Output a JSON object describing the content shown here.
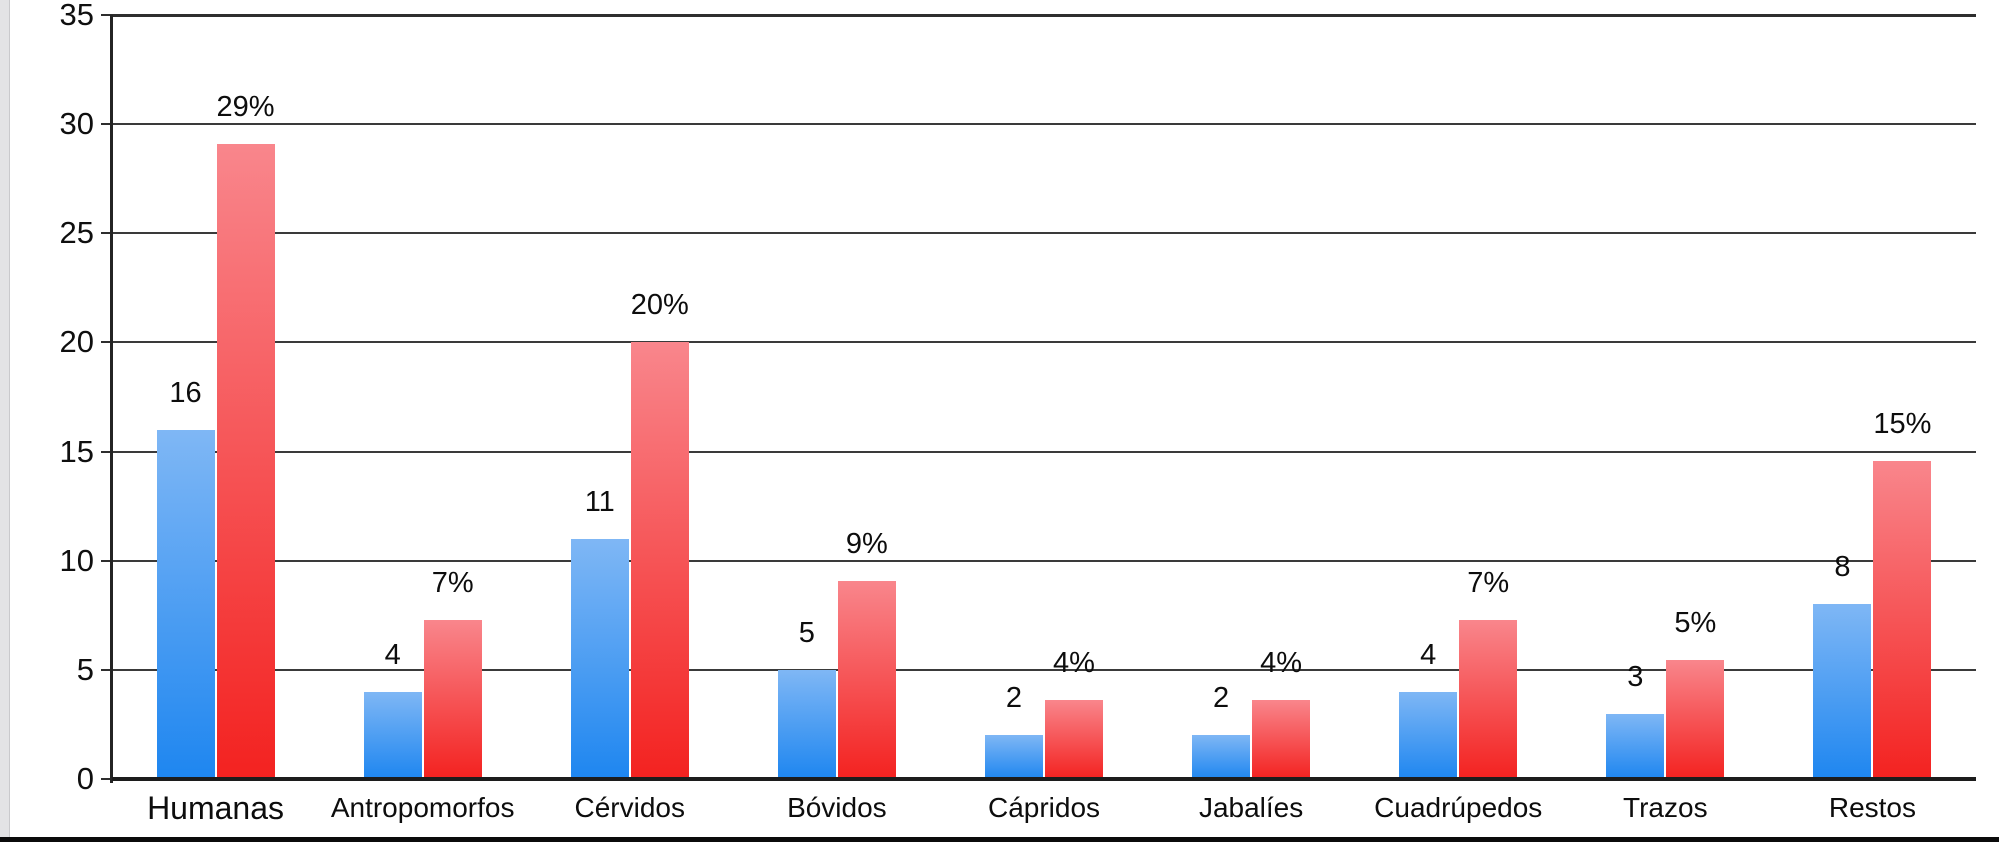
{
  "chart_data": {
    "type": "bar",
    "title": "",
    "categories": [
      "Humanas",
      "Antropomorfos",
      "Cérvidos",
      "Bóvidos",
      "Cápridos",
      "Jabalíes",
      "Cuadrúpedos",
      "Trazos",
      "Restos"
    ],
    "series": [
      {
        "role": "count",
        "color_top": "#7fb7f5",
        "color_bottom": "#1e86f0",
        "values": [
          16,
          4,
          11,
          5,
          2,
          2,
          4,
          3,
          8
        ],
        "labels": [
          "16",
          "4",
          "11",
          "5",
          "2",
          "2",
          "4",
          "3",
          "8"
        ]
      },
      {
        "role": "percent",
        "color_top": "#f9868c",
        "color_bottom": "#f32220",
        "values": [
          29.09,
          7.27,
          20.0,
          9.09,
          3.64,
          3.64,
          7.27,
          5.45,
          14.55
        ],
        "labels": [
          "29%",
          "7%",
          "20%",
          "9%",
          "4%",
          "4%",
          "7%",
          "5%",
          "15%"
        ]
      }
    ],
    "xlabel": "",
    "ylabel": "",
    "ylim": [
      0,
      35
    ],
    "yticks": [
      0,
      5,
      10,
      15,
      20,
      25,
      30,
      35
    ],
    "ytick_labels": [
      "0",
      "5",
      "10",
      "15",
      "20",
      "25",
      "30",
      "35"
    ],
    "grid": true,
    "legend": "none",
    "bar_value_labels": true,
    "axis_color": "#333333",
    "text_color": "#111111",
    "background": "#ffffff"
  }
}
